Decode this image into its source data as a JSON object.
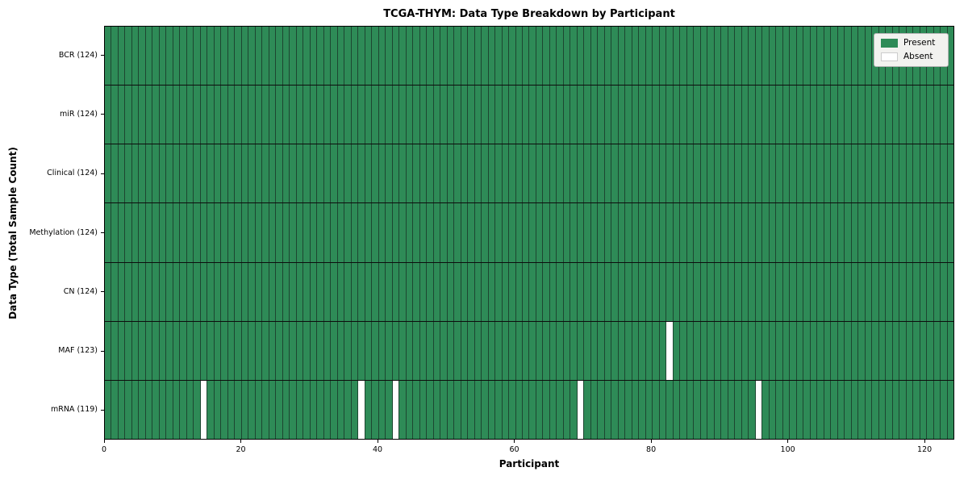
{
  "title": "TCGA-THYM: Data Type Breakdown by Participant",
  "xlabel": "Participant",
  "ylabel": "Data Type (Total Sample Count)",
  "colors": {
    "present": "#2e8b57",
    "absent": "#ffffff",
    "cell_edge_line": "#1d4631",
    "row_separator_line": "#0d0d0d",
    "plot_border": "#000000",
    "legend_background": "#f2f2ef",
    "legend_border": "#b3b3b3"
  },
  "legend": {
    "position": "upper right",
    "entries": [
      {
        "label": "Present",
        "color": "#2e8b57"
      },
      {
        "label": "Absent",
        "color": "#ffffff"
      }
    ]
  },
  "chart_data": {
    "type": "heatmap",
    "title": "TCGA-THYM: Data Type Breakdown by Participant",
    "xlabel": "Participant",
    "ylabel": "Data Type (Total Sample Count)",
    "n_participants": 124,
    "xlim": [
      0,
      124
    ],
    "x_ticks": [
      0,
      20,
      40,
      60,
      80,
      100,
      120
    ],
    "grid": false,
    "legend_position": "upper right",
    "cell_values": {
      "present": 1,
      "absent": 0
    },
    "rows": [
      {
        "label": "BCR (124)",
        "data_type": "BCR",
        "present_count": 124,
        "missing_participants": []
      },
      {
        "label": "miR (124)",
        "data_type": "miR",
        "present_count": 124,
        "missing_participants": []
      },
      {
        "label": "Clinical (124)",
        "data_type": "Clinical",
        "present_count": 124,
        "missing_participants": []
      },
      {
        "label": "Methylation (124)",
        "data_type": "Methylation",
        "present_count": 124,
        "missing_participants": []
      },
      {
        "label": "CN (124)",
        "data_type": "CN",
        "present_count": 124,
        "missing_participants": []
      },
      {
        "label": "MAF (123)",
        "data_type": "MAF",
        "present_count": 123,
        "missing_participants": [
          82
        ]
      },
      {
        "label": "mRNA (119)",
        "data_type": "mRNA",
        "present_count": 119,
        "missing_participants": [
          14,
          37,
          42,
          69,
          95
        ]
      }
    ]
  }
}
